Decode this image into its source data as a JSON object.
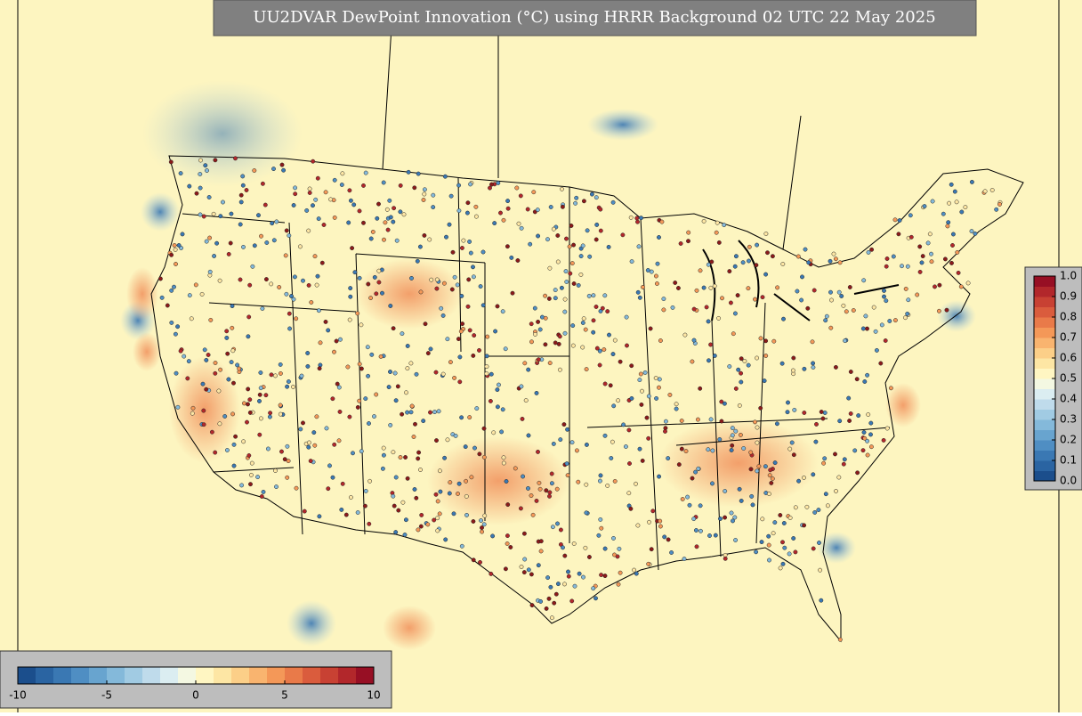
{
  "title": "UU2DVAR DewPoint Innovation (°C) using HRRR Background 02 UTC 22 May 2025",
  "innovation_colorbar": {
    "ticks": [
      -10,
      -5,
      0,
      5,
      10
    ],
    "colors": [
      "#1b4e8c",
      "#2a64a2",
      "#3a78b3",
      "#4f8ec3",
      "#68a4cf",
      "#84b9da",
      "#a1cbe3",
      "#bfdbeb",
      "#dbedf1",
      "#f4f8e2",
      "#fff6c2",
      "#fde6a4",
      "#fccf88",
      "#f9b46f",
      "#f49858",
      "#e97a49",
      "#da5c3d",
      "#c84133",
      "#b2272b",
      "#970f24"
    ]
  },
  "fraction_colorbar": {
    "ticks": [
      {
        "value": 0,
        "label": "0.0"
      },
      0.1,
      0.2,
      0.3,
      0.4,
      0.5,
      0.6,
      0.7,
      0.8,
      0.9,
      {
        "value": 1,
        "label": "1.0"
      }
    ],
    "colors": [
      "#1b4e8c",
      "#2a64a2",
      "#3a78b3",
      "#4f8ec3",
      "#68a4cf",
      "#84b9da",
      "#a1cbe3",
      "#bfdbeb",
      "#dbedf1",
      "#f4f8e2",
      "#fff6c2",
      "#fde6a4",
      "#fccf88",
      "#f9b46f",
      "#f49858",
      "#e97a49",
      "#da5c3d",
      "#c84133",
      "#b2272b",
      "#970f24"
    ]
  }
}
